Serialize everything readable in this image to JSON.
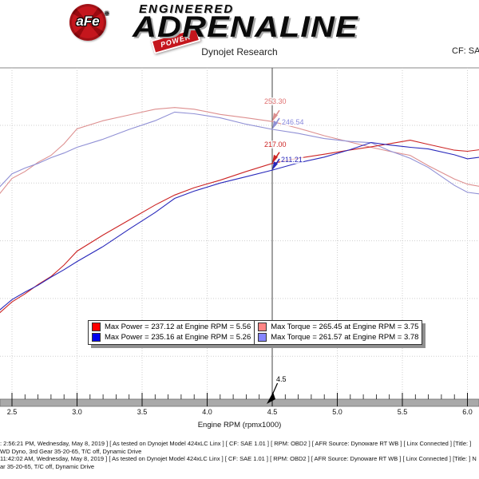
{
  "header": {
    "logo_text": "aFe",
    "logo_registered": "®",
    "logo_banner": "POWER",
    "brand_top": "ENGINEERED",
    "brand_main": "ADRENALINE",
    "subtitle": "Dynojet Research",
    "cf_text": "CF: SA"
  },
  "chart_data": {
    "type": "line",
    "title": "",
    "xlabel": "Engine RPM (rpmx1000)",
    "ylabel": "",
    "xlim": [
      2.4,
      6.1
    ],
    "x_ticks": [
      "2.5",
      "3.0",
      "3.5",
      "4.0",
      "4.5",
      "5.0",
      "5.5",
      "6.0"
    ],
    "y_gridline_values": [
      250,
      200,
      150,
      100,
      50
    ],
    "grid": true,
    "legend_position": "bottom-center",
    "x": [
      2.4,
      2.5,
      2.6,
      2.7,
      2.8,
      2.9,
      3.0,
      3.2,
      3.4,
      3.6,
      3.75,
      3.9,
      4.1,
      4.3,
      4.5,
      4.7,
      4.9,
      5.1,
      5.26,
      5.4,
      5.56,
      5.7,
      5.9,
      6.0,
      6.1
    ],
    "series": [
      {
        "name": "tuned-torque",
        "color": "#dd8f8f",
        "values": [
          190,
          204,
          210,
          218,
          224,
          234,
          247,
          254,
          259,
          264,
          265.45,
          264,
          259.5,
          256.5,
          253.3,
          247.5,
          241,
          235.5,
          231,
          227.5,
          224,
          215,
          203.5,
          199,
          197
        ]
      },
      {
        "name": "stock-torque",
        "color": "#9090d5",
        "values": [
          196,
          208,
          213,
          217,
          222,
          226,
          231,
          238,
          246.5,
          254,
          261.5,
          260,
          256.5,
          251,
          246.54,
          243,
          238.5,
          236,
          235,
          228,
          221.5,
          213.5,
          198,
          192,
          190.5
        ]
      },
      {
        "name": "tuned-power",
        "color": "#cc2424",
        "values": [
          87,
          97,
          104,
          112,
          119,
          129,
          141,
          155,
          168,
          181,
          189.6,
          196,
          202.5,
          210,
          217,
          221.5,
          225,
          228.7,
          231.4,
          234,
          237.12,
          233.5,
          228.5,
          227.5,
          229
        ]
      },
      {
        "name": "stock-power",
        "color": "#2828bb",
        "values": [
          89.5,
          99,
          105.5,
          111.5,
          118.5,
          125,
          132,
          145,
          160,
          174.5,
          186.7,
          193,
          200,
          205.5,
          211.21,
          217.5,
          222.5,
          229,
          235.16,
          233,
          231,
          229.5,
          224.5,
          221,
          222.5
        ]
      }
    ],
    "cursor": {
      "rpm": 4.5,
      "label": "4.5"
    },
    "annotations": [
      {
        "label": "253.30",
        "color": "#e07070",
        "series": "tuned-torque"
      },
      {
        "label": "246.54",
        "color": "#8888dd",
        "series": "stock-torque"
      },
      {
        "label": "217.00",
        "color": "#cc2424",
        "series": "tuned-power"
      },
      {
        "label": "211.21",
        "color": "#2828bb",
        "series": "stock-power"
      }
    ],
    "legend": {
      "entries": [
        {
          "swatch": "#ff0000",
          "column": 0,
          "text": "Max Power = 237.12 at Engine RPM = 5.56"
        },
        {
          "swatch": "#0000ee",
          "column": 0,
          "text": "Max Power = 235.16 at Engine RPM = 5.26"
        },
        {
          "swatch": "#ff8585",
          "column": 1,
          "text": "Max Torque = 265.45 at Engine RPM = 3.75"
        },
        {
          "swatch": "#8585ff",
          "column": 1,
          "text": "Max Torque = 261.57 at Engine RPM = 3.78"
        }
      ]
    }
  },
  "footer": {
    "lines": [
      ": 2:56:21 PM, Wednesday, May 8, 2019 ] [ As tested on Dynojet Model 424xLC Linx ] [ CF: SAE 1.01 ] [ RPM: OBD2 ] [ AFR Source: Dynoware RT WB ] [ Linx Connected ] [Title: ]",
      "WD Dyno, 3rd Gear 35-20-65, T/C off, Dynamic Drive",
      "11:42:02 AM, Wednesday, May 8, 2019 ] [ As tested on Dynojet Model 424xLC Linx ] [ CF: SAE 1.01 ] [ RPM: OBD2 ] [ AFR Source: Dynoware RT WB ] [ Linx Connected ] [Title: ] N",
      "ar 35-20-65, T/C off, Dynamic Drive"
    ]
  }
}
